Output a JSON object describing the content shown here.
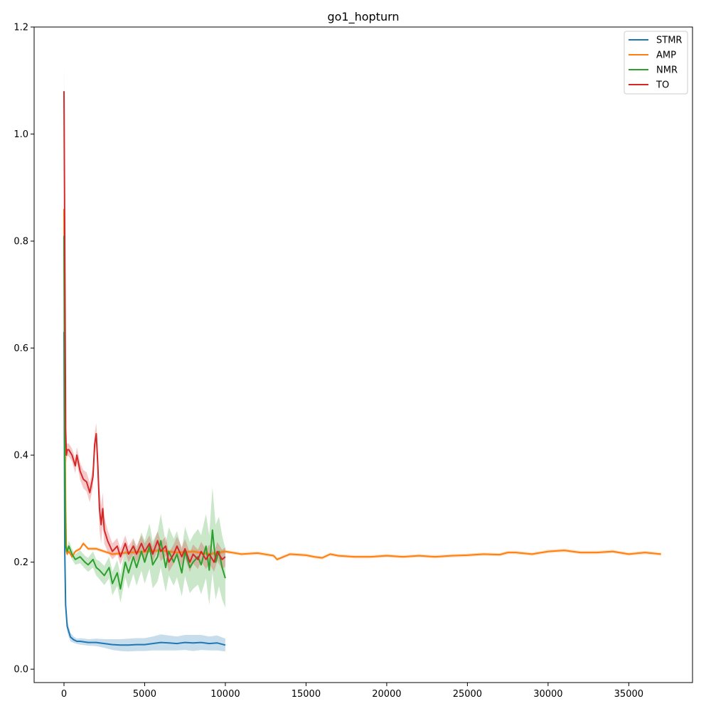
{
  "chart_data": {
    "type": "line",
    "title": "go1_hopturn",
    "xlabel": "",
    "ylabel": "",
    "xlim": [
      -1850,
      38950
    ],
    "ylim": [
      -0.025,
      1.2
    ],
    "xticks": [
      0,
      5000,
      10000,
      15000,
      20000,
      25000,
      30000,
      35000
    ],
    "yticks": [
      0.0,
      0.2,
      0.4,
      0.6,
      0.8,
      1.0,
      1.2
    ],
    "xtick_labels": [
      "0",
      "5000",
      "10000",
      "15000",
      "20000",
      "25000",
      "30000",
      "35000"
    ],
    "ytick_labels": [
      "0.0",
      "0.2",
      "0.4",
      "0.6",
      "0.8",
      "1.0",
      "1.2"
    ],
    "grid": false,
    "legend_position": "top-right",
    "shaded_band": true,
    "series": [
      {
        "name": "STMR",
        "color": "#1f77b4",
        "x": [
          0,
          50,
          100,
          200,
          300,
          400,
          600,
          800,
          1000,
          1500,
          2000,
          2500,
          3000,
          3500,
          4000,
          4500,
          5000,
          5500,
          6000,
          6500,
          7000,
          7500,
          8000,
          8500,
          9000,
          9500,
          10000
        ],
        "y": [
          0.63,
          0.22,
          0.12,
          0.08,
          0.07,
          0.06,
          0.055,
          0.052,
          0.052,
          0.05,
          0.05,
          0.048,
          0.046,
          0.045,
          0.045,
          0.046,
          0.046,
          0.048,
          0.05,
          0.049,
          0.048,
          0.05,
          0.049,
          0.05,
          0.048,
          0.049,
          0.045
        ],
        "band": [
          0.02,
          0.02,
          0.015,
          0.01,
          0.01,
          0.008,
          0.006,
          0.005,
          0.006,
          0.006,
          0.007,
          0.008,
          0.01,
          0.011,
          0.012,
          0.012,
          0.012,
          0.013,
          0.015,
          0.014,
          0.013,
          0.014,
          0.015,
          0.014,
          0.013,
          0.014,
          0.012
        ]
      },
      {
        "name": "AMP",
        "color": "#ff7f0e",
        "x": [
          0,
          50,
          100,
          150,
          200,
          300,
          500,
          700,
          1000,
          1200,
          1500,
          2000,
          2500,
          3000,
          4000,
          5000,
          6000,
          7000,
          8000,
          9000,
          10000,
          11000,
          12000,
          13000,
          13200,
          14000,
          15000,
          15500,
          16000,
          16500,
          17000,
          18000,
          19000,
          20000,
          21000,
          22000,
          23000,
          24000,
          25000,
          26000,
          27000,
          27500,
          28000,
          29000,
          30000,
          31000,
          32000,
          33000,
          34000,
          35000,
          36000,
          37000
        ],
        "y": [
          0.86,
          0.5,
          0.3,
          0.22,
          0.215,
          0.22,
          0.21,
          0.22,
          0.225,
          0.235,
          0.225,
          0.225,
          0.22,
          0.215,
          0.218,
          0.22,
          0.222,
          0.218,
          0.22,
          0.215,
          0.22,
          0.215,
          0.217,
          0.212,
          0.205,
          0.215,
          0.213,
          0.21,
          0.208,
          0.215,
          0.212,
          0.21,
          0.21,
          0.212,
          0.21,
          0.212,
          0.21,
          0.212,
          0.213,
          0.215,
          0.214,
          0.218,
          0.218,
          0.215,
          0.22,
          0.222,
          0.218,
          0.218,
          0.22,
          0.215,
          0.218,
          0.215
        ],
        "band": [
          0.02,
          0.01,
          0.005,
          0.004,
          0.003,
          0.003,
          0.003,
          0.003,
          0.003,
          0.003,
          0.003,
          0.003,
          0.003,
          0.003,
          0.003,
          0.003,
          0.003,
          0.003,
          0.003,
          0.003,
          0.003,
          0.003,
          0.003,
          0.003,
          0.003,
          0.003,
          0.003,
          0.003,
          0.003,
          0.003,
          0.003,
          0.003,
          0.003,
          0.003,
          0.003,
          0.003,
          0.003,
          0.003,
          0.003,
          0.003,
          0.003,
          0.003,
          0.003,
          0.003,
          0.003,
          0.003,
          0.003,
          0.003,
          0.003,
          0.003,
          0.003,
          0.003
        ]
      },
      {
        "name": "NMR",
        "color": "#2ca02c",
        "x": [
          0,
          50,
          100,
          150,
          200,
          300,
          500,
          700,
          1000,
          1300,
          1500,
          1800,
          2000,
          2200,
          2500,
          2800,
          3000,
          3300,
          3500,
          3800,
          4000,
          4300,
          4500,
          4800,
          5000,
          5300,
          5500,
          5800,
          6000,
          6300,
          6500,
          6800,
          7000,
          7300,
          7500,
          7800,
          8000,
          8300,
          8500,
          8800,
          9000,
          9200,
          9400,
          9600,
          9800,
          10000
        ],
        "y": [
          0.81,
          0.4,
          0.23,
          0.225,
          0.22,
          0.23,
          0.215,
          0.205,
          0.21,
          0.2,
          0.195,
          0.205,
          0.19,
          0.185,
          0.175,
          0.19,
          0.16,
          0.18,
          0.15,
          0.2,
          0.18,
          0.21,
          0.19,
          0.22,
          0.2,
          0.23,
          0.195,
          0.21,
          0.24,
          0.19,
          0.22,
          0.2,
          0.215,
          0.18,
          0.22,
          0.19,
          0.2,
          0.21,
          0.195,
          0.23,
          0.185,
          0.26,
          0.2,
          0.22,
          0.19,
          0.17
        ],
        "band": [
          0.03,
          0.02,
          0.01,
          0.008,
          0.008,
          0.01,
          0.01,
          0.01,
          0.012,
          0.012,
          0.013,
          0.015,
          0.015,
          0.017,
          0.018,
          0.02,
          0.022,
          0.024,
          0.026,
          0.028,
          0.03,
          0.032,
          0.034,
          0.036,
          0.04,
          0.042,
          0.044,
          0.046,
          0.05,
          0.046,
          0.045,
          0.044,
          0.043,
          0.044,
          0.046,
          0.048,
          0.05,
          0.052,
          0.055,
          0.06,
          0.065,
          0.08,
          0.07,
          0.065,
          0.06,
          0.055
        ]
      },
      {
        "name": "TO",
        "color": "#d62728",
        "x": [
          0,
          50,
          100,
          150,
          200,
          300,
          500,
          700,
          800,
          1000,
          1200,
          1400,
          1600,
          1800,
          1900,
          2000,
          2100,
          2200,
          2300,
          2400,
          2500,
          2700,
          3000,
          3300,
          3500,
          3800,
          4000,
          4300,
          4500,
          4800,
          5000,
          5300,
          5500,
          5800,
          6000,
          6300,
          6500,
          6800,
          7000,
          7300,
          7500,
          7800,
          8000,
          8300,
          8500,
          8800,
          9000,
          9300,
          9500,
          9800,
          10000
        ],
        "y": [
          1.08,
          0.8,
          0.45,
          0.4,
          0.41,
          0.41,
          0.4,
          0.38,
          0.4,
          0.37,
          0.355,
          0.35,
          0.33,
          0.36,
          0.42,
          0.44,
          0.38,
          0.3,
          0.27,
          0.3,
          0.26,
          0.24,
          0.22,
          0.23,
          0.21,
          0.235,
          0.215,
          0.23,
          0.215,
          0.235,
          0.22,
          0.235,
          0.215,
          0.24,
          0.22,
          0.23,
          0.2,
          0.215,
          0.23,
          0.21,
          0.225,
          0.2,
          0.215,
          0.205,
          0.22,
          0.205,
          0.215,
          0.2,
          0.22,
          0.205,
          0.21
        ],
        "band": [
          0.05,
          0.08,
          0.03,
          0.015,
          0.012,
          0.012,
          0.012,
          0.014,
          0.015,
          0.016,
          0.017,
          0.018,
          0.018,
          0.02,
          0.02,
          0.02,
          0.03,
          0.04,
          0.035,
          0.03,
          0.025,
          0.02,
          0.015,
          0.015,
          0.015,
          0.015,
          0.015,
          0.015,
          0.015,
          0.015,
          0.015,
          0.015,
          0.015,
          0.018,
          0.018,
          0.018,
          0.018,
          0.018,
          0.018,
          0.018,
          0.018,
          0.018,
          0.018,
          0.018,
          0.018,
          0.018,
          0.018,
          0.018,
          0.018,
          0.018,
          0.018
        ]
      }
    ]
  }
}
